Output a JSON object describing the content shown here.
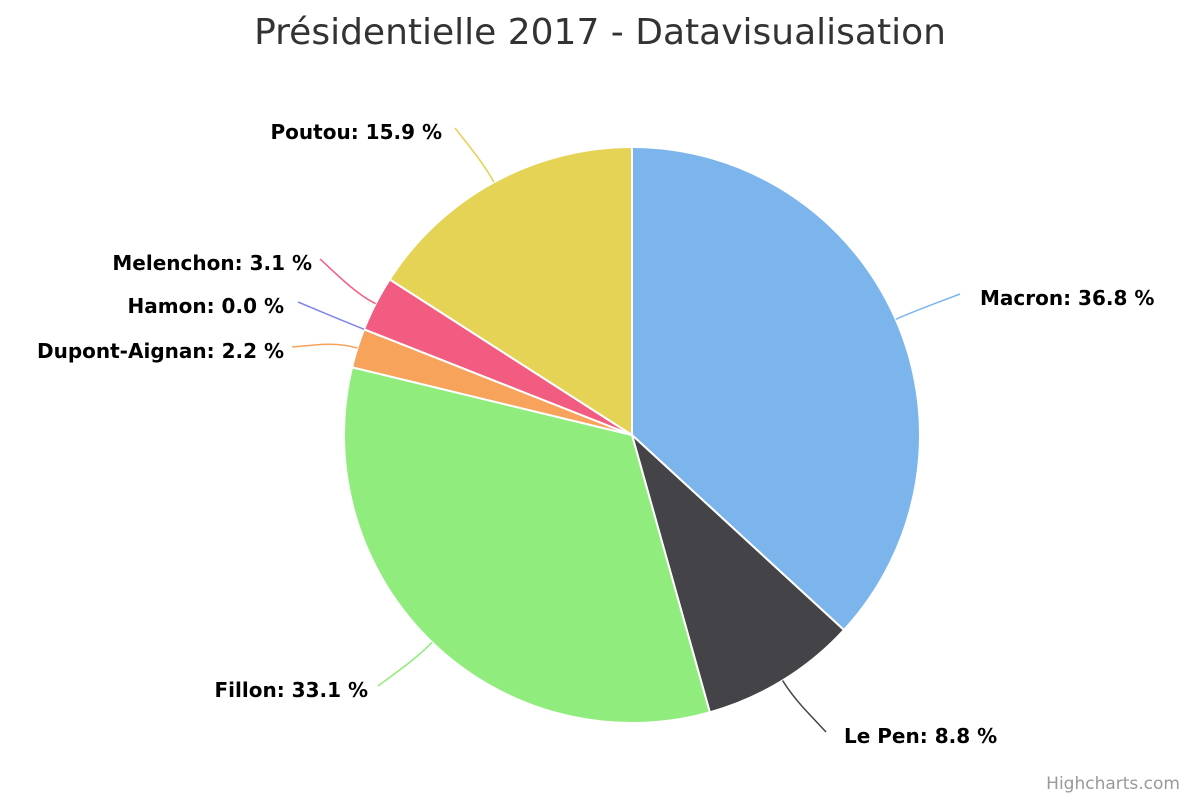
{
  "title": "Présidentielle 2017 - Datavisualisation",
  "credits": "Highcharts.com",
  "chart_data": {
    "type": "pie",
    "title": "Présidentielle 2017 - Datavisualisation",
    "label_format": "{name}: {value} %",
    "slices": [
      {
        "name": "Macron",
        "value": 36.8,
        "color": "#7cb5ec"
      },
      {
        "name": "Le Pen",
        "value": 8.8,
        "color": "#434348"
      },
      {
        "name": "Fillon",
        "value": 33.1,
        "color": "#90ed7d"
      },
      {
        "name": "Dupont-Aignan",
        "value": 2.2,
        "color": "#f7a35c"
      },
      {
        "name": "Hamon",
        "value": 0.0,
        "color": "#8085e9"
      },
      {
        "name": "Melenchon",
        "value": 3.1,
        "color": "#f15c80"
      },
      {
        "name": "Poutou",
        "value": 15.9,
        "color": "#e4d354"
      }
    ]
  }
}
